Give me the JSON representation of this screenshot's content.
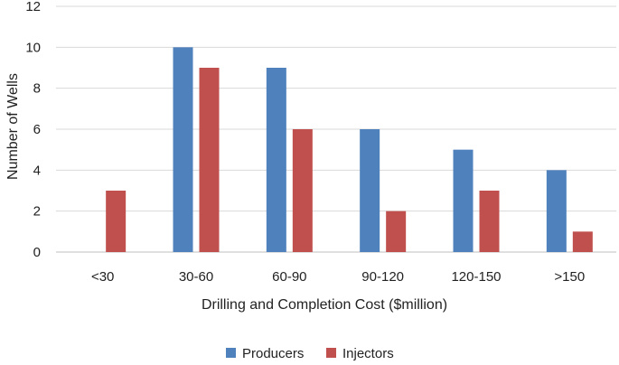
{
  "chart_data": {
    "type": "bar",
    "title": "",
    "xlabel": "Drilling and Completion Cost ($million)",
    "ylabel": "Number of Wells",
    "categories": [
      "<30",
      "30-60",
      "60-90",
      "90-120",
      "120-150",
      ">150"
    ],
    "series": [
      {
        "name": "Producers",
        "color": "#4F81BD",
        "values": [
          0,
          10,
          9,
          6,
          5,
          4
        ]
      },
      {
        "name": "Injectors",
        "color": "#C0504D",
        "values": [
          3,
          9,
          6,
          2,
          3,
          1
        ]
      }
    ],
    "ylim": [
      0,
      12
    ],
    "yticks": [
      0,
      2,
      4,
      6,
      8,
      10,
      12
    ],
    "grid": true,
    "legend_position": "bottom"
  }
}
